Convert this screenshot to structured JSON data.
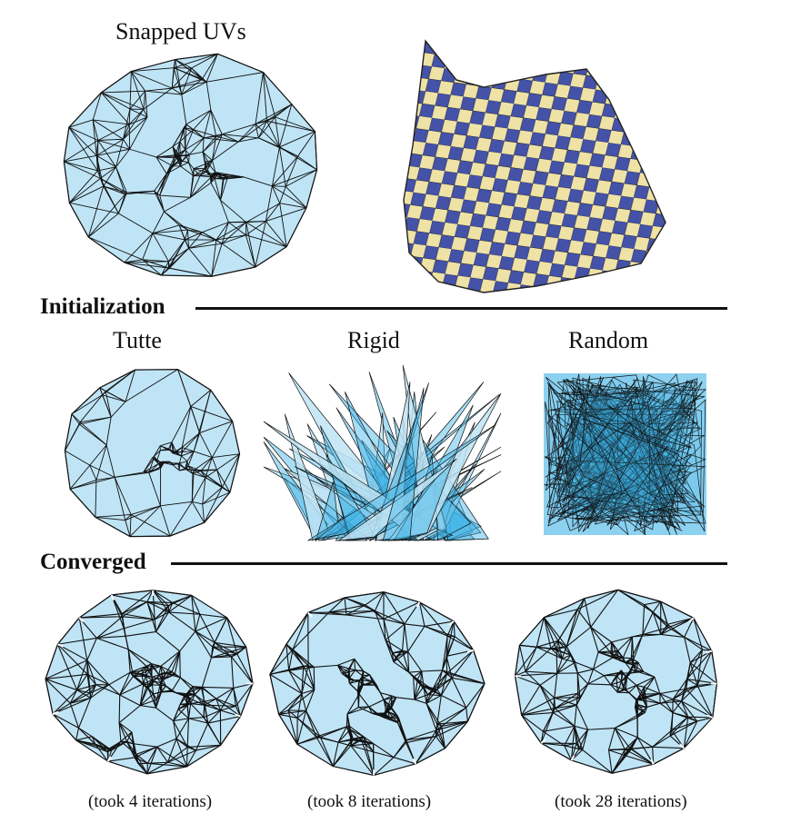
{
  "top": {
    "title": "Snapped UVs"
  },
  "sections": {
    "initialization": "Initialization",
    "converged": "Converged"
  },
  "initialization": {
    "tutte": "Tutte",
    "rigid": "Rigid",
    "random": "Random"
  },
  "converged": {
    "captions": [
      "(took 4 iterations)",
      "(took 8 iterations)",
      "(took 28 iterations)"
    ]
  },
  "colors": {
    "mesh_fill": "#bfe4f5",
    "mesh_stroke": "#111111",
    "overlap_fill": "#3fb3e6",
    "checker_blue": "#4452a8",
    "checker_cream": "#efe2a6"
  }
}
